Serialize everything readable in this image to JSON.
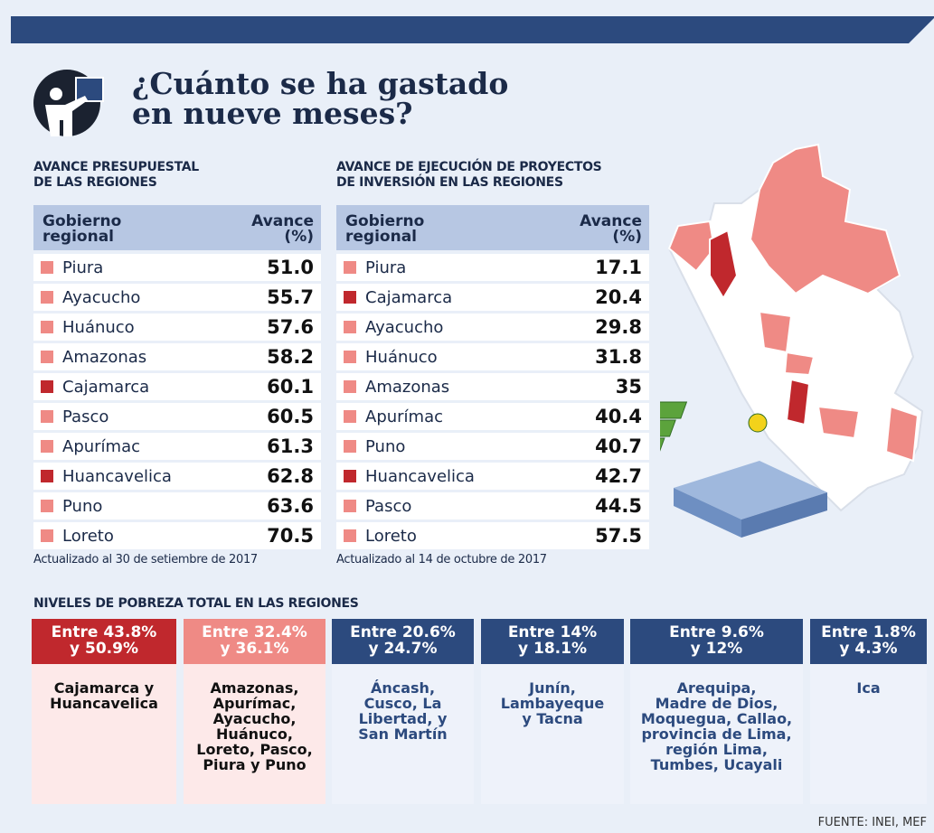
{
  "header": {
    "title": "¿Cuánto se ha gastado\nen nueve meses?"
  },
  "tables": [
    {
      "heading": "AVANCE PRESUPUESTAL\nDE LAS REGIONES",
      "columns": [
        "Gobierno\nregional",
        "Avance\n(%)"
      ],
      "rows": [
        {
          "region": "Piura",
          "value": "51.0",
          "color": "#ef8a85"
        },
        {
          "region": "Ayacucho",
          "value": "55.7",
          "color": "#ef8a85"
        },
        {
          "region": "Huánuco",
          "value": "57.6",
          "color": "#ef8a85"
        },
        {
          "region": "Amazonas",
          "value": "58.2",
          "color": "#ef8a85"
        },
        {
          "region": "Cajamarca",
          "value": "60.1",
          "color": "#c0282d"
        },
        {
          "region": "Pasco",
          "value": "60.5",
          "color": "#ef8a85"
        },
        {
          "region": "Apurímac",
          "value": "61.3",
          "color": "#ef8a85"
        },
        {
          "region": "Huancavelica",
          "value": "62.8",
          "color": "#c0282d"
        },
        {
          "region": "Puno",
          "value": "63.6",
          "color": "#ef8a85"
        },
        {
          "region": "Loreto",
          "value": "70.5",
          "color": "#ef8a85"
        }
      ],
      "note": "Actualizado al 30 de setiembre de 2017"
    },
    {
      "heading": "AVANCE DE EJECUCIÓN DE PROYECTOS\nDE INVERSIÓN EN LAS REGIONES",
      "columns": [
        "Gobierno\nregional",
        "Avance\n(%)"
      ],
      "rows": [
        {
          "region": "Piura",
          "value": "17.1",
          "color": "#ef8a85"
        },
        {
          "region": "Cajamarca",
          "value": "20.4",
          "color": "#c0282d"
        },
        {
          "region": "Ayacucho",
          "value": "29.8",
          "color": "#ef8a85"
        },
        {
          "region": "Huánuco",
          "value": "31.8",
          "color": "#ef8a85"
        },
        {
          "region": "Amazonas",
          "value": "35",
          "color": "#ef8a85"
        },
        {
          "region": "Apurímac",
          "value": "40.4",
          "color": "#ef8a85"
        },
        {
          "region": "Puno",
          "value": "40.7",
          "color": "#ef8a85"
        },
        {
          "region": "Huancavelica",
          "value": "42.7",
          "color": "#c0282d"
        },
        {
          "region": "Pasco",
          "value": "44.5",
          "color": "#ef8a85"
        },
        {
          "region": "Loreto",
          "value": "57.5",
          "color": "#ef8a85"
        }
      ],
      "note": "Actualizado al 14 de octubre de 2017"
    }
  ],
  "poverty": {
    "heading": "NIVELES DE POBREZA TOTAL EN LAS REGIONES",
    "levels": [
      {
        "range": "Entre 43.8%\ny 50.9%",
        "regions": "Cajamarca y\nHuancavelica",
        "color": "#c0282d",
        "background": "#fde9e9",
        "text_color": "#111111"
      },
      {
        "range": "Entre 32.4%\ny 36.1%",
        "regions": "Amazonas,\nApurímac,\nAyacucho,\nHuánuco,\nLoreto, Pasco,\nPiura y Puno",
        "color": "#ef8a85",
        "background": "#fde9e9",
        "text_color": "#111111"
      },
      {
        "range": "Entre 20.6%\ny 24.7%",
        "regions": "Áncash,\nCusco, La\nLibertad, y\nSan Martín",
        "color": "#2c4a7e",
        "background": "#eef2fa",
        "text_color": "#2c4a7e"
      },
      {
        "range": "Entre 14%\ny 18.1%",
        "regions": "Junín,\nLambayeque\ny Tacna",
        "color": "#2c4a7e",
        "background": "#eef2fa",
        "text_color": "#2c4a7e"
      },
      {
        "range": "Entre 9.6%\ny 12%",
        "regions": "Arequipa,\nMadre de Dios,\nMoquegua, Callao,\nprovincia de Lima,\nregión Lima,\nTumbes, Ucayali",
        "color": "#2c4a7e",
        "background": "#eef2fa",
        "text_color": "#2c4a7e"
      },
      {
        "range": "Entre 1.8%\ny 4.3%",
        "regions": "Ica",
        "color": "#2c4a7e",
        "background": "#eef2fa",
        "text_color": "#2c4a7e"
      }
    ]
  },
  "source": "FUENTE: INEI, MEF"
}
